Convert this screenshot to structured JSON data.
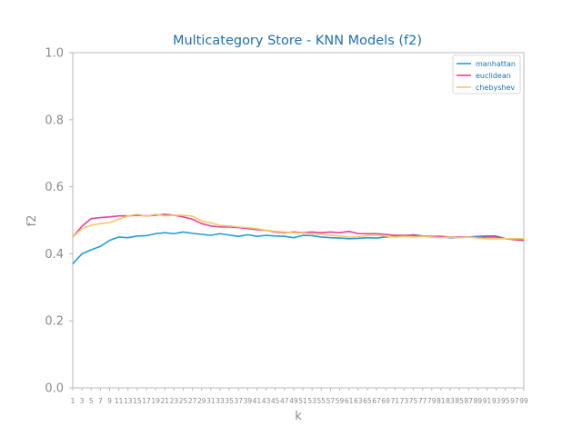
{
  "chart_data": {
    "type": "line",
    "title": "Multicategory Store - KNN Models (f2)",
    "xlabel": "k",
    "ylabel": "f2",
    "ylim": [
      0.0,
      1.0
    ],
    "xlim": [
      1,
      99
    ],
    "grid": false,
    "legend_position": "top-right",
    "yticks": [
      "0.0",
      "0.2",
      "0.4",
      "0.6",
      "0.8",
      "1.0"
    ],
    "xticks": [
      "1",
      "3",
      "5",
      "7",
      "9",
      "11",
      "13",
      "15",
      "17",
      "19",
      "21",
      "23",
      "25",
      "27",
      "29",
      "31",
      "33",
      "35",
      "37",
      "39",
      "41",
      "43",
      "45",
      "47",
      "49",
      "51",
      "53",
      "55",
      "57",
      "59",
      "61",
      "63",
      "65",
      "67",
      "69",
      "71",
      "73",
      "75",
      "77",
      "79",
      "81",
      "83",
      "85",
      "87",
      "89",
      "91",
      "93",
      "95",
      "97",
      "99"
    ],
    "x": [
      1,
      3,
      5,
      7,
      9,
      11,
      13,
      15,
      17,
      19,
      21,
      23,
      25,
      27,
      29,
      31,
      33,
      35,
      37,
      39,
      41,
      43,
      45,
      47,
      49,
      51,
      53,
      55,
      57,
      59,
      61,
      63,
      65,
      67,
      69,
      71,
      73,
      75,
      77,
      79,
      81,
      83,
      85,
      87,
      89,
      91,
      93,
      95,
      97,
      99
    ],
    "series": [
      {
        "name": "manhattan",
        "color": "#1f9ed8",
        "values": [
          0.37,
          0.4,
          0.412,
          0.422,
          0.44,
          0.45,
          0.448,
          0.453,
          0.454,
          0.46,
          0.463,
          0.46,
          0.465,
          0.461,
          0.458,
          0.455,
          0.46,
          0.456,
          0.452,
          0.457,
          0.452,
          0.455,
          0.453,
          0.452,
          0.448,
          0.455,
          0.454,
          0.45,
          0.448,
          0.447,
          0.445,
          0.446,
          0.448,
          0.447,
          0.45,
          0.453,
          0.453,
          0.457,
          0.453,
          0.45,
          0.45,
          0.448,
          0.448,
          0.45,
          0.452,
          0.453,
          0.453,
          0.445,
          0.445,
          0.443
        ]
      },
      {
        "name": "euclidean",
        "color": "#e8409a",
        "values": [
          0.45,
          0.482,
          0.505,
          0.508,
          0.51,
          0.513,
          0.513,
          0.515,
          0.513,
          0.515,
          0.518,
          0.515,
          0.51,
          0.503,
          0.49,
          0.483,
          0.48,
          0.48,
          0.478,
          0.475,
          0.472,
          0.47,
          0.465,
          0.463,
          0.465,
          0.463,
          0.465,
          0.463,
          0.465,
          0.463,
          0.467,
          0.46,
          0.46,
          0.46,
          0.458,
          0.455,
          0.455,
          0.455,
          0.453,
          0.452,
          0.452,
          0.45,
          0.45,
          0.45,
          0.448,
          0.45,
          0.45,
          0.445,
          0.442,
          0.44
        ]
      },
      {
        "name": "chebyshev",
        "color": "#f5c767",
        "values": [
          0.45,
          0.475,
          0.485,
          0.49,
          0.493,
          0.503,
          0.513,
          0.518,
          0.512,
          0.518,
          0.513,
          0.515,
          0.515,
          0.512,
          0.498,
          0.492,
          0.485,
          0.483,
          0.48,
          0.478,
          0.475,
          0.47,
          0.467,
          0.465,
          0.463,
          0.462,
          0.46,
          0.458,
          0.455,
          0.453,
          0.45,
          0.45,
          0.455,
          0.455,
          0.453,
          0.45,
          0.452,
          0.45,
          0.452,
          0.45,
          0.448,
          0.45,
          0.448,
          0.45,
          0.447,
          0.445,
          0.445,
          0.445,
          0.445,
          0.445
        ]
      }
    ]
  }
}
